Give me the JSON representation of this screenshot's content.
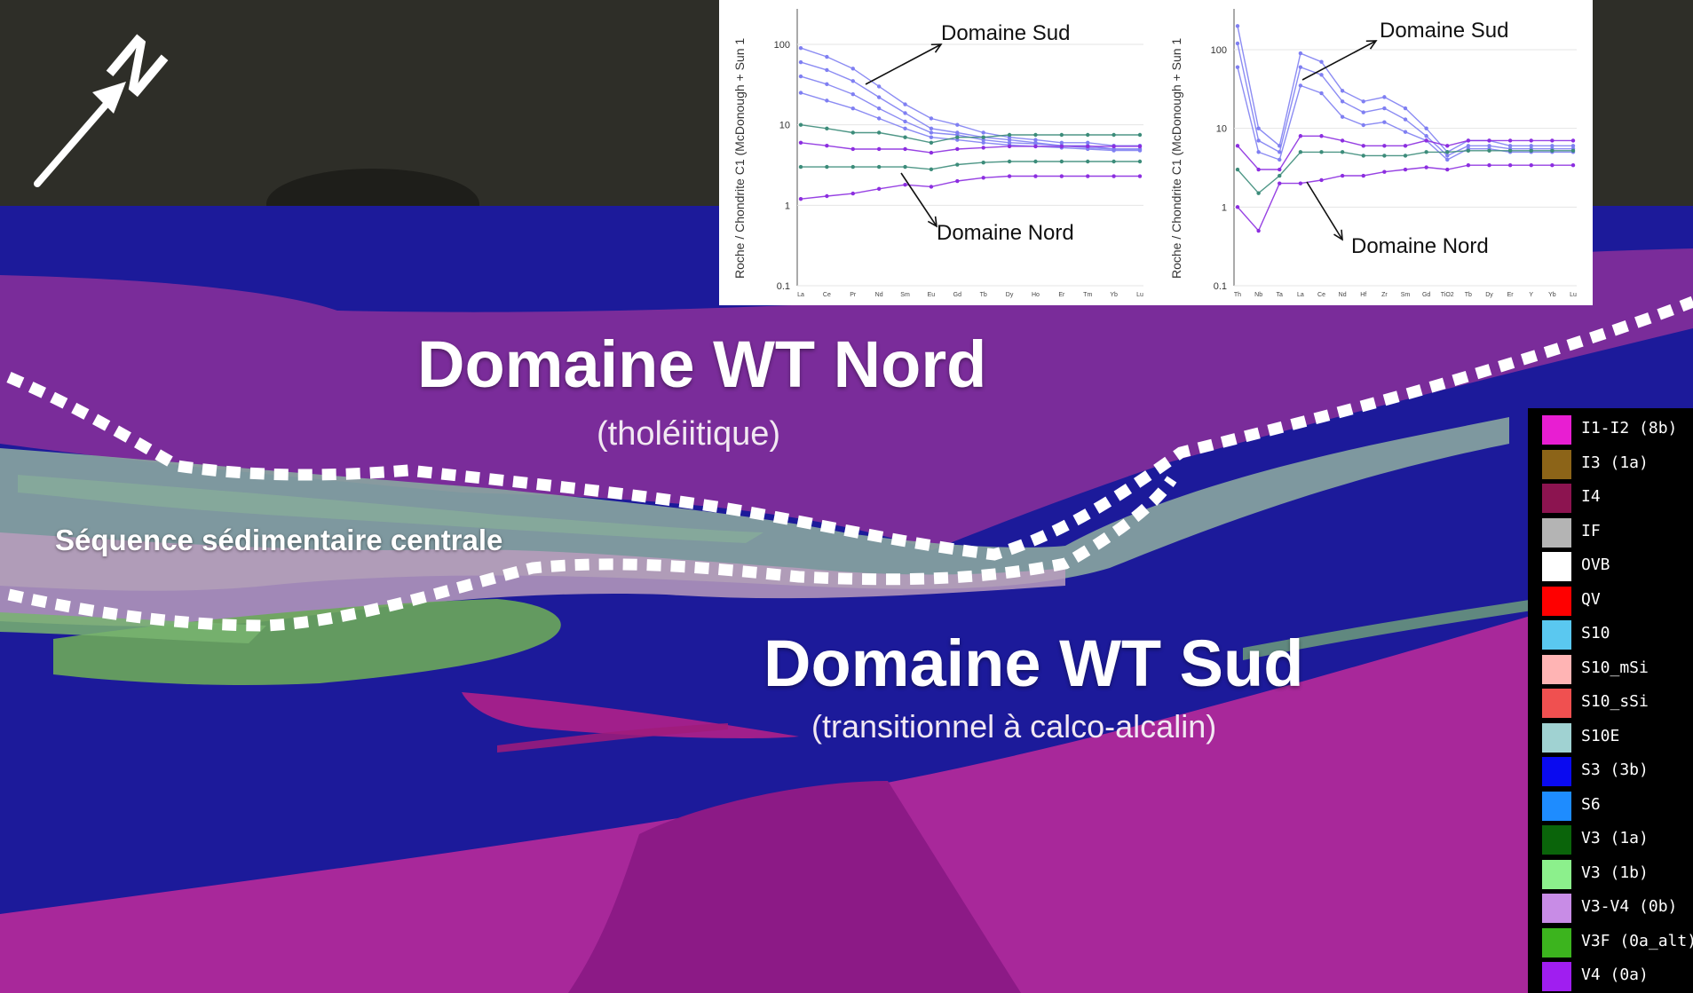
{
  "north_arrow": {
    "letter": "N"
  },
  "labels": {
    "domain_north_title": "Domaine WT Nord",
    "domain_north_subtitle": "(tholéiitique)",
    "domain_south_title": "Domaine WT Sud",
    "domain_south_subtitle": "(transitionnel à calco-alcalin)",
    "sequence": "Séquence sédimentaire centrale"
  },
  "legend": [
    {
      "label": "I1-I2 (8b)",
      "color": "#e81ed2"
    },
    {
      "label": "I3 (1a)",
      "color": "#8c6418"
    },
    {
      "label": "I4",
      "color": "#8c1450"
    },
    {
      "label": "IF",
      "color": "#b4b4b4"
    },
    {
      "label": "OVB",
      "color": "#ffffff"
    },
    {
      "label": "QV",
      "color": "#ff0000"
    },
    {
      "label": "S10",
      "color": "#5ac8f0"
    },
    {
      "label": "S10_mSi",
      "color": "#ffb4b4"
    },
    {
      "label": "S10_sSi",
      "color": "#f05050"
    },
    {
      "label": "S10E",
      "color": "#a0d2d2"
    },
    {
      "label": "S3 (3b)",
      "color": "#0a0af0"
    },
    {
      "label": "S6",
      "color": "#1e8cff"
    },
    {
      "label": "V3 (1a)",
      "color": "#0a640a"
    },
    {
      "label": "V3 (1b)",
      "color": "#8cf08c"
    },
    {
      "label": "V3-V4 (0b)",
      "color": "#c88ce6"
    },
    {
      "label": "V3F (0a_alt)",
      "color": "#3cb41e"
    },
    {
      "label": "V4 (0a)",
      "color": "#a01ef0"
    }
  ],
  "chart_data": [
    {
      "type": "line",
      "ylabel": "Roche / Chondrite C1 (McDonough + Sun 1",
      "y_scale": "log",
      "ylim": [
        0.1,
        200
      ],
      "y_ticks": [
        "100",
        "10",
        "1",
        "0.1"
      ],
      "categories": [
        "La",
        "Ce",
        "Pr",
        "Nd",
        "Sm",
        "Eu",
        "Gd",
        "Tb",
        "Dy",
        "Ho",
        "Er",
        "Tm",
        "Yb",
        "Lu"
      ],
      "annotations": [
        "Domaine Sud",
        "Domaine Nord"
      ],
      "series": [
        {
          "group": "sud",
          "values": [
            90,
            70,
            50,
            30,
            18,
            12,
            10,
            8,
            7,
            6.5,
            6,
            6,
            5.5,
            5.5
          ]
        },
        {
          "group": "sud",
          "values": [
            60,
            48,
            35,
            22,
            14,
            9,
            8,
            7,
            6.5,
            6,
            5.5,
            5.5,
            5,
            5
          ]
        },
        {
          "group": "sud",
          "values": [
            40,
            32,
            24,
            16,
            11,
            8,
            7.5,
            6.5,
            6,
            5.8,
            5.5,
            5.2,
            5,
            5
          ]
        },
        {
          "group": "sud",
          "values": [
            25,
            20,
            16,
            12,
            9,
            7,
            6.5,
            6,
            5.6,
            5.4,
            5.2,
            5,
            4.8,
            4.8
          ]
        },
        {
          "group": "nord",
          "values": [
            10,
            9,
            8,
            8,
            7,
            6,
            7,
            7,
            7.5,
            7.5,
            7.5,
            7.5,
            7.5,
            7.5
          ]
        },
        {
          "group": "nord",
          "values": [
            6,
            5.5,
            5,
            5,
            5,
            4.5,
            5,
            5.2,
            5.4,
            5.4,
            5.4,
            5.4,
            5.4,
            5.4
          ]
        },
        {
          "group": "nord",
          "values": [
            3,
            3,
            3,
            3,
            3,
            2.8,
            3.2,
            3.4,
            3.5,
            3.5,
            3.5,
            3.5,
            3.5,
            3.5
          ]
        },
        {
          "group": "nord",
          "values": [
            1.2,
            1.3,
            1.4,
            1.6,
            1.8,
            1.7,
            2,
            2.2,
            2.3,
            2.3,
            2.3,
            2.3,
            2.3,
            2.3
          ]
        }
      ]
    },
    {
      "type": "line",
      "ylabel": "Roche / Chondrite C1 (McDonough + Sun 1",
      "y_scale": "log",
      "ylim": [
        0.1,
        300
      ],
      "y_ticks": [
        "100",
        "10",
        "1",
        "0.1"
      ],
      "categories": [
        "Th",
        "Nb",
        "Ta",
        "La",
        "Ce",
        "Nd",
        "Hf",
        "Zr",
        "Sm",
        "Gd",
        "TiO2",
        "Tb",
        "Dy",
        "Er",
        "Y",
        "Yb",
        "Lu"
      ],
      "annotations": [
        "Domaine Sud",
        "Domaine Nord"
      ],
      "series": [
        {
          "group": "sud",
          "values": [
            200,
            10,
            6,
            90,
            70,
            30,
            22,
            25,
            18,
            10,
            5,
            7,
            7,
            6,
            6,
            6,
            6
          ]
        },
        {
          "group": "sud",
          "values": [
            120,
            7,
            5,
            60,
            48,
            22,
            16,
            18,
            13,
            8,
            4.5,
            6,
            6,
            5.5,
            5.5,
            5.5,
            5.5
          ]
        },
        {
          "group": "sud",
          "values": [
            60,
            5,
            4,
            35,
            28,
            14,
            11,
            12,
            9,
            7,
            4,
            5.5,
            5.5,
            5,
            5,
            5,
            5
          ]
        },
        {
          "group": "nord",
          "values": [
            6,
            3,
            3,
            8,
            8,
            7,
            6,
            6,
            6,
            7,
            6,
            7,
            7,
            7,
            7,
            7,
            7
          ]
        },
        {
          "group": "nord",
          "values": [
            3,
            1.5,
            2.5,
            5,
            5,
            5,
            4.5,
            4.5,
            4.5,
            5,
            5,
            5.2,
            5.2,
            5.2,
            5.2,
            5.2,
            5.2
          ]
        },
        {
          "group": "nord",
          "values": [
            1,
            0.5,
            2,
            2,
            2.2,
            2.5,
            2.5,
            2.8,
            3,
            3.2,
            3,
            3.4,
            3.4,
            3.4,
            3.4,
            3.4,
            3.4
          ]
        }
      ]
    }
  ]
}
